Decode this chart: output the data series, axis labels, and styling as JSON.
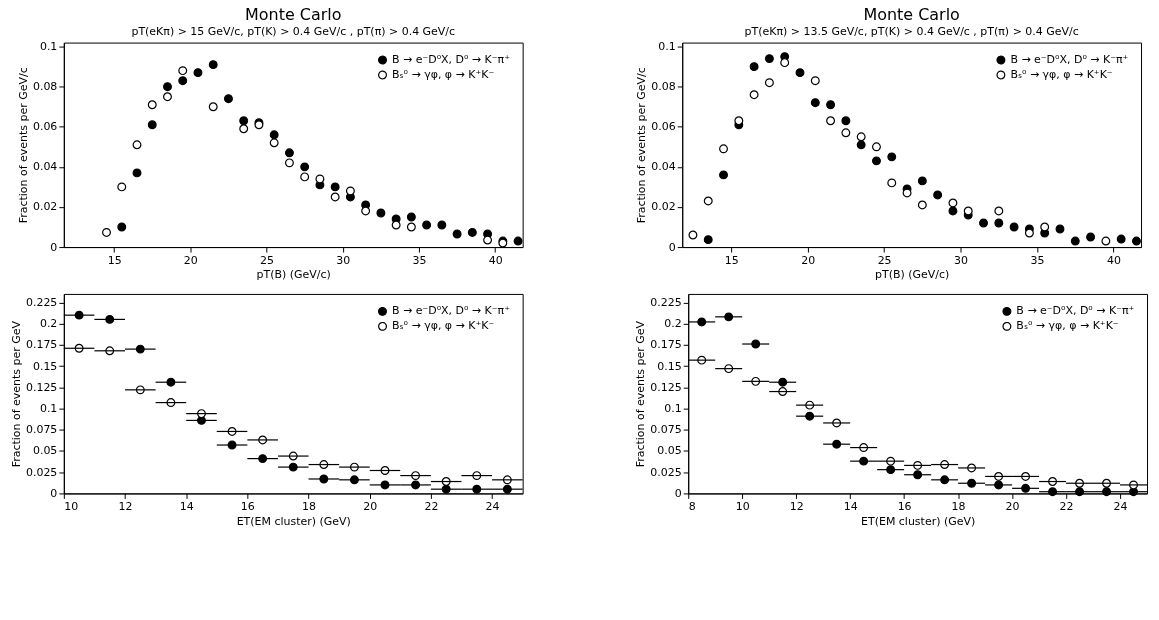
{
  "chart_data": [
    {
      "type": "scatter",
      "title": "Monte Carlo",
      "subtitle": "pT(eKπ) > 15 GeV/c, pT(K) > 0.4 GeV/c , pT(π) > 0.4 GeV/c",
      "xlabel": "pT(B) (GeV/c)",
      "ylabel": "Fraction of events per GeV/c",
      "xlim": [
        11.7,
        41.8
      ],
      "xticks": [
        15,
        20,
        25,
        30,
        35,
        40
      ],
      "ylim": [
        0,
        0.102
      ],
      "yticks": [
        0,
        0.02,
        0.04,
        0.06,
        0.08,
        0.1
      ],
      "grid": false,
      "legend": "top right",
      "marker": "circle",
      "series": [
        {
          "name": "B → e⁻D⁰X, D⁰ → K⁻π⁺",
          "color": "#000000",
          "x": [
            15.5,
            16.5,
            17.5,
            18.5,
            19.5,
            20.5,
            21.5,
            22.5,
            23.5,
            24.5,
            25.5,
            26.5,
            27.5,
            28.5,
            29.5,
            30.5,
            31.5,
            32.5,
            33.5,
            34.5,
            35.5,
            36.5,
            37.5,
            38.5,
            39.5,
            40.5,
            41.5
          ],
          "values": [
            0.01,
            0.037,
            0.061,
            0.08,
            0.083,
            0.087,
            0.091,
            0.074,
            0.063,
            0.062,
            0.056,
            0.047,
            0.04,
            0.031,
            0.03,
            0.025,
            0.021,
            0.017,
            0.014,
            0.015,
            0.011,
            0.011,
            0.0065,
            0.0073,
            0.0065,
            0.003,
            0.003
          ]
        },
        {
          "name": "Bₛ⁰ → γφ, φ → K⁺K⁻",
          "color": "#ffffff",
          "x": [
            14.5,
            15.5,
            16.5,
            17.5,
            18.5,
            19.5,
            21.5,
            23.5,
            24.5,
            25.5,
            26.5,
            27.5,
            28.5,
            29.5,
            30.5,
            31.5,
            33.5,
            34.5,
            39.5,
            40.5
          ],
          "values": [
            0.0073,
            0.03,
            0.051,
            0.071,
            0.075,
            0.088,
            0.07,
            0.059,
            0.061,
            0.052,
            0.042,
            0.035,
            0.034,
            0.025,
            0.028,
            0.018,
            0.011,
            0.01,
            0.0035,
            0.002
          ]
        }
      ]
    },
    {
      "type": "scatter",
      "title": "Monte Carlo",
      "subtitle": "pT(eKπ) > 13.5 GeV/c, pT(K) > 0.4 GeV/c , pT(π) > 0.4 GeV/c",
      "xlabel": "pT(B) (GeV/c)",
      "ylabel": "Fraction of events per GeV/c",
      "xlim": [
        11.8,
        41.8
      ],
      "xticks": [
        15,
        20,
        25,
        30,
        35,
        40
      ],
      "ylim": [
        0,
        0.102
      ],
      "yticks": [
        0,
        0.02,
        0.04,
        0.06,
        0.08,
        0.1
      ],
      "grid": false,
      "legend": "top right",
      "marker": "circle",
      "series": [
        {
          "name": "B → e⁻D⁰X, D⁰ → K⁻π⁺",
          "color": "#000000",
          "x": [
            13.5,
            14.5,
            15.5,
            16.5,
            17.5,
            18.5,
            19.5,
            20.5,
            21.5,
            22.5,
            23.5,
            24.5,
            25.5,
            26.5,
            27.5,
            28.5,
            29.5,
            30.5,
            31.5,
            32.5,
            33.5,
            34.5,
            35.5,
            36.5,
            37.5,
            38.5,
            40.5,
            41.5
          ],
          "values": [
            0.0037,
            0.036,
            0.061,
            0.09,
            0.094,
            0.095,
            0.087,
            0.072,
            0.071,
            0.063,
            0.051,
            0.043,
            0.045,
            0.029,
            0.033,
            0.026,
            0.018,
            0.016,
            0.012,
            0.012,
            0.01,
            0.009,
            0.007,
            0.009,
            0.003,
            0.005,
            0.004,
            0.003
          ]
        },
        {
          "name": "Bₛ⁰ → γφ, φ → K⁺K⁻",
          "color": "#ffffff",
          "x": [
            12.5,
            13.5,
            14.5,
            15.5,
            16.5,
            17.5,
            18.5,
            20.5,
            21.5,
            22.5,
            23.5,
            24.5,
            25.5,
            26.5,
            27.5,
            29.5,
            30.5,
            32.5,
            34.5,
            35.5,
            39.5
          ],
          "values": [
            0.006,
            0.023,
            0.049,
            0.063,
            0.076,
            0.082,
            0.092,
            0.083,
            0.063,
            0.057,
            0.055,
            0.05,
            0.032,
            0.027,
            0.021,
            0.022,
            0.018,
            0.018,
            0.007,
            0.01,
            0.003
          ]
        }
      ]
    },
    {
      "type": "scatter",
      "xlabel": "ET(EM cluster) (GeV)",
      "ylabel": "Fraction of events per GeV",
      "xlim": [
        10,
        25
      ],
      "xticks": [
        10,
        12,
        14,
        16,
        18,
        20,
        22,
        24
      ],
      "ylim": [
        0,
        0.235
      ],
      "yticks": [
        0,
        0.025,
        0.05,
        0.075,
        0.1,
        0.125,
        0.15,
        0.175,
        0.2,
        0.225
      ],
      "grid": false,
      "legend": "top right",
      "marker": "circle",
      "series": [
        {
          "name": "B → e⁻D⁰X, D⁰ → K⁻π⁺",
          "color": "#000000",
          "x": [
            10.5,
            11.5,
            12.5,
            13.5,
            14.5,
            15.5,
            16.5,
            17.5,
            18.5,
            19.5,
            20.5,
            21.5,
            22.5,
            23.5,
            24.5
          ],
          "values": [
            0.21,
            0.205,
            0.17,
            0.131,
            0.086,
            0.057,
            0.041,
            0.031,
            0.017,
            0.016,
            0.01,
            0.01,
            0.005,
            0.005,
            0.005
          ],
          "xerrors": [
            0.5,
            0.5,
            0.5,
            0.5,
            0.5,
            0.5,
            0.5,
            0.5,
            0.5,
            0.5,
            0.5,
            0.5,
            0.5,
            0.5,
            0.5
          ]
        },
        {
          "name": "Bₛ⁰ → γφ, φ → K⁺K⁻",
          "color": "#ffffff",
          "x": [
            10.5,
            11.5,
            12.5,
            13.5,
            14.5,
            15.5,
            16.5,
            17.5,
            18.5,
            19.5,
            20.5,
            21.5,
            22.5,
            23.5,
            24.5
          ],
          "values": [
            0.171,
            0.168,
            0.122,
            0.107,
            0.094,
            0.073,
            0.063,
            0.044,
            0.034,
            0.031,
            0.027,
            0.021,
            0.014,
            0.021,
            0.016
          ],
          "xerrors": [
            0.5,
            0.5,
            0.5,
            0.5,
            0.5,
            0.5,
            0.5,
            0.5,
            0.5,
            0.5,
            0.5,
            0.5,
            0.5,
            0.5,
            0.5
          ]
        }
      ]
    },
    {
      "type": "scatter",
      "xlabel": "ET(EM cluster) (GeV)",
      "ylabel": "Fraction of events per GeV",
      "xlim": [
        8,
        25
      ],
      "xticks": [
        8,
        10,
        12,
        14,
        16,
        18,
        20,
        22,
        24
      ],
      "ylim": [
        0,
        0.235
      ],
      "yticks": [
        0,
        0.025,
        0.05,
        0.075,
        0.1,
        0.125,
        0.15,
        0.175,
        0.2,
        0.225
      ],
      "grid": false,
      "legend": "top right",
      "marker": "circle",
      "series": [
        {
          "name": "B → e⁻D⁰X, D⁰ → K⁻π⁺",
          "color": "#000000",
          "x": [
            8.5,
            9.5,
            10.5,
            11.5,
            12.5,
            13.5,
            14.5,
            15.5,
            16.5,
            17.5,
            18.5,
            19.5,
            20.5,
            21.5,
            22.5,
            23.5,
            24.5
          ],
          "values": [
            0.202,
            0.208,
            0.176,
            0.131,
            0.091,
            0.058,
            0.038,
            0.028,
            0.022,
            0.016,
            0.012,
            0.01,
            0.006,
            0.002,
            0.002,
            0.002,
            0.002
          ],
          "xerrors": [
            0.5,
            0.5,
            0.5,
            0.5,
            0.5,
            0.5,
            0.5,
            0.5,
            0.5,
            0.5,
            0.5,
            0.5,
            0.5,
            0.5,
            0.5,
            0.5,
            0.5
          ]
        },
        {
          "name": "Bₛ⁰ → γφ, φ → K⁺K⁻",
          "color": "#ffffff",
          "x": [
            8.5,
            9.5,
            10.5,
            11.5,
            12.5,
            13.5,
            14.5,
            15.5,
            16.5,
            17.5,
            18.5,
            19.5,
            20.5,
            21.5,
            22.5,
            23.5,
            24.5
          ],
          "values": [
            0.157,
            0.147,
            0.132,
            0.12,
            0.104,
            0.083,
            0.054,
            0.038,
            0.033,
            0.034,
            0.03,
            0.02,
            0.02,
            0.014,
            0.012,
            0.012,
            0.01
          ],
          "xerrors": [
            0.5,
            0.5,
            0.5,
            0.5,
            0.5,
            0.5,
            0.5,
            0.5,
            0.5,
            0.5,
            0.5,
            0.5,
            0.5,
            0.5,
            0.5,
            0.5,
            0.5
          ]
        }
      ]
    }
  ]
}
